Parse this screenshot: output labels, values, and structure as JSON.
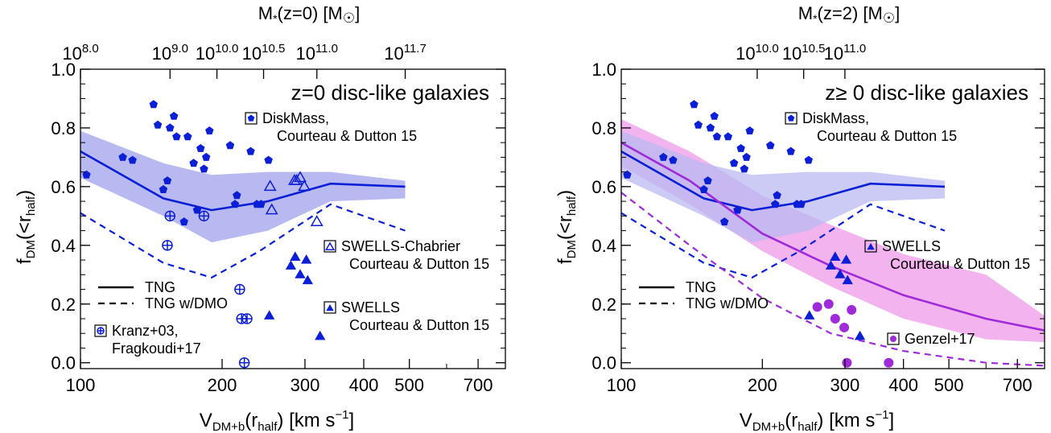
{
  "chart_data": [
    {
      "type": "scatter",
      "title": "z=0 disc-like galaxies",
      "xlabel_main": "V",
      "xlabel_sub": "DM+b",
      "xlabel_mid": "(r",
      "xlabel_sub2": "half",
      "xlabel_end": ") [km s",
      "xlabel_sup": "−1",
      "xlabel_close": "]",
      "ylabel_main": "f",
      "ylabel_sub": "DM",
      "ylabel_mid": "(<r",
      "ylabel_sub2": "half",
      "ylabel_end": ")",
      "top_axis_label": "M",
      "top_axis_label_rest": "(z=0) [M",
      "top_axis_label_close": "]",
      "x_scale": "log",
      "xlim": [
        100,
        800
      ],
      "ylim": [
        -0.02,
        1.0
      ],
      "x_ticks": [
        100,
        200,
        300,
        400,
        500,
        700
      ],
      "x_tick_labels": [
        "100",
        "200",
        "300",
        "400",
        "500",
        "700"
      ],
      "y_ticks": [
        0.0,
        0.2,
        0.4,
        0.6,
        0.8,
        1.0
      ],
      "y_tick_labels": [
        "0.0",
        "0.2",
        "0.4",
        "0.6",
        "0.8",
        "1.0"
      ],
      "top_ticks": [
        100,
        155,
        195,
        245,
        318,
        490
      ],
      "top_tick_labels": [
        {
          "base": "10",
          "exp": "8.0"
        },
        {
          "base": "10",
          "exp": "9.0"
        },
        {
          "base": "10",
          "exp": "10.0"
        },
        {
          "base": "10",
          "exp": "10.5"
        },
        {
          "base": "10",
          "exp": "11.0"
        },
        {
          "base": "10",
          "exp": "11.7"
        }
      ],
      "legend": {
        "solid": "TNG",
        "dashed": "TNG w/DMO"
      },
      "band": {
        "color": "#b9b9f2",
        "x": [
          100,
          150,
          190,
          250,
          340,
          490
        ],
        "upper": [
          0.79,
          0.68,
          0.64,
          0.65,
          0.65,
          0.62
        ],
        "lower": [
          0.63,
          0.5,
          0.41,
          0.45,
          0.55,
          0.56
        ]
      },
      "series": [
        {
          "name": "TNG",
          "style": "solid",
          "color": "#0b1fd6",
          "x": [
            100,
            150,
            190,
            250,
            340,
            490
          ],
          "y": [
            0.72,
            0.56,
            0.52,
            0.55,
            0.61,
            0.6
          ]
        },
        {
          "name": "TNG w/DMO",
          "style": "dashed",
          "color": "#0b1fd6",
          "x": [
            100,
            150,
            190,
            240,
            340,
            490
          ],
          "y": [
            0.51,
            0.34,
            0.29,
            0.38,
            0.54,
            0.45
          ]
        }
      ],
      "points": {
        "diskmass": {
          "color": "#0b1fd6",
          "x": [
            103,
            123,
            129,
            143,
            146,
            150,
            153,
            155,
            158,
            160,
            166,
            169,
            174,
            177,
            180,
            183,
            185,
            188,
            208,
            213,
            215,
            230,
            237,
            242,
            251
          ],
          "y": [
            0.64,
            0.7,
            0.69,
            0.88,
            0.81,
            0.59,
            0.62,
            0.8,
            0.84,
            0.77,
            0.48,
            0.77,
            0.68,
            0.52,
            0.73,
            0.66,
            0.7,
            0.79,
            0.74,
            0.54,
            0.57,
            0.72,
            0.54,
            0.54,
            0.69
          ]
        },
        "swells_chabrier": {
          "color": "#0b1fd6",
          "x": [
            253,
            255,
            285,
            288,
            293,
            299,
            318
          ],
          "y": [
            0.6,
            0.52,
            0.62,
            0.62,
            0.63,
            0.6,
            0.48
          ]
        },
        "swells": {
          "color": "#0b1fd6",
          "x": [
            252,
            280,
            286,
            293,
            302,
            304,
            323
          ],
          "y": [
            0.16,
            0.33,
            0.36,
            0.3,
            0.35,
            0.28,
            0.09
          ]
        },
        "kranz": {
          "color": "#0b1fd6",
          "x": [
            153,
            155,
            183,
            218,
            220,
            226,
            223
          ],
          "y": [
            0.4,
            0.5,
            0.5,
            0.25,
            0.15,
            0.15,
            0.0
          ]
        }
      },
      "legend_entries": {
        "diskmass": [
          "DiskMass,",
          "Courteau & Dutton 15"
        ],
        "swells_chabrier": [
          "SWELLS-Chabrier",
          "Courteau & Dutton 15"
        ],
        "swells": [
          "SWELLS",
          "Courteau & Dutton 15"
        ],
        "kranz": [
          "Kranz+03,",
          "Fragkoudi+17"
        ]
      }
    },
    {
      "type": "scatter",
      "title": "z≥ 0 disc-like galaxies",
      "xlabel_main": "V",
      "xlabel_sub": "DM+b",
      "xlabel_mid": "(r",
      "xlabel_sub2": "half",
      "xlabel_end": ") [km s",
      "xlabel_sup": "−1",
      "xlabel_close": "]",
      "ylabel_main": "f",
      "ylabel_sub": "DM",
      "ylabel_mid": "(<r",
      "ylabel_sub2": "half",
      "ylabel_end": ")",
      "top_axis_label": "M",
      "top_axis_label_rest": "(z=2) [M",
      "top_axis_label_close": "]",
      "x_scale": "log",
      "xlim": [
        100,
        800
      ],
      "ylim": [
        -0.02,
        1.0
      ],
      "x_ticks": [
        100,
        200,
        300,
        400,
        500,
        700
      ],
      "x_tick_labels": [
        "100",
        "200",
        "300",
        "400",
        "500",
        "700"
      ],
      "y_ticks": [
        0.0,
        0.2,
        0.4,
        0.6,
        0.8,
        1.0
      ],
      "y_tick_labels": [
        "0.0",
        "0.2",
        "0.4",
        "0.6",
        "0.8",
        "1.0"
      ],
      "top_ticks": [
        195,
        245,
        300
      ],
      "top_tick_labels": [
        {
          "base": "10",
          "exp": "10.0"
        },
        {
          "base": "10",
          "exp": "10.5"
        },
        {
          "base": "10",
          "exp": "11.0"
        }
      ],
      "legend": {
        "solid": "TNG",
        "dashed": "TNG w/DMO"
      },
      "band": {
        "color": "#b9b9f2",
        "x": [
          100,
          150,
          190,
          250,
          340,
          490
        ],
        "upper": [
          0.79,
          0.68,
          0.64,
          0.65,
          0.65,
          0.62
        ],
        "lower": [
          0.63,
          0.5,
          0.41,
          0.45,
          0.55,
          0.56
        ]
      },
      "band2": {
        "color": "#f0a6ec",
        "x": [
          100,
          140,
          200,
          280,
          400,
          600,
          800
        ],
        "upper": [
          0.83,
          0.72,
          0.57,
          0.47,
          0.37,
          0.3,
          0.16
        ],
        "lower": [
          0.67,
          0.54,
          0.38,
          0.26,
          0.15,
          0.08,
          0.07
        ]
      },
      "series": [
        {
          "name": "TNG",
          "style": "solid",
          "color": "#0b1fd6",
          "x": [
            100,
            150,
            190,
            250,
            340,
            490
          ],
          "y": [
            0.72,
            0.56,
            0.52,
            0.55,
            0.61,
            0.6
          ]
        },
        {
          "name": "TNG w/DMO",
          "style": "dashed",
          "color": "#0b1fd6",
          "x": [
            100,
            150,
            190,
            240,
            340,
            490
          ],
          "y": [
            0.51,
            0.34,
            0.29,
            0.38,
            0.54,
            0.45
          ]
        },
        {
          "name": "TNG",
          "style": "solid",
          "color": "#9f2bd8",
          "x": [
            100,
            140,
            200,
            280,
            400,
            600,
            800
          ],
          "y": [
            0.75,
            0.62,
            0.44,
            0.33,
            0.23,
            0.15,
            0.11
          ]
        },
        {
          "name": "TNG w/DMO",
          "style": "dashed",
          "color": "#9f2bd8",
          "x": [
            100,
            140,
            200,
            280,
            400,
            600,
            800
          ],
          "y": [
            0.58,
            0.4,
            0.22,
            0.1,
            0.04,
            0.0,
            -0.01
          ]
        }
      ],
      "points": {
        "diskmass": {
          "color": "#0b1fd6",
          "x": [
            103,
            123,
            129,
            143,
            146,
            150,
            153,
            155,
            158,
            160,
            166,
            169,
            174,
            177,
            180,
            183,
            185,
            188,
            208,
            213,
            215,
            230,
            237,
            242,
            251
          ],
          "y": [
            0.64,
            0.7,
            0.69,
            0.88,
            0.81,
            0.59,
            0.62,
            0.8,
            0.84,
            0.77,
            0.48,
            0.77,
            0.68,
            0.52,
            0.73,
            0.66,
            0.7,
            0.79,
            0.74,
            0.54,
            0.57,
            0.72,
            0.54,
            0.54,
            0.69
          ]
        },
        "swells": {
          "color": "#0b1fd6",
          "x": [
            252,
            280,
            286,
            293,
            302,
            304,
            323
          ],
          "y": [
            0.16,
            0.33,
            0.36,
            0.3,
            0.35,
            0.28,
            0.09
          ]
        },
        "genzel": {
          "color": "#9f2bd8",
          "x": [
            262,
            277,
            286,
            299,
            303,
            310,
            372
          ],
          "y": [
            0.19,
            0.2,
            0.15,
            0.12,
            0.0,
            0.18,
            0.0
          ]
        }
      },
      "legend_entries": {
        "diskmass": [
          "DiskMass,",
          "Courteau & Dutton 15"
        ],
        "swells": [
          "SWELLS",
          "Courteau & Dutton 15"
        ],
        "genzel": [
          "Genzel+17"
        ]
      }
    }
  ]
}
